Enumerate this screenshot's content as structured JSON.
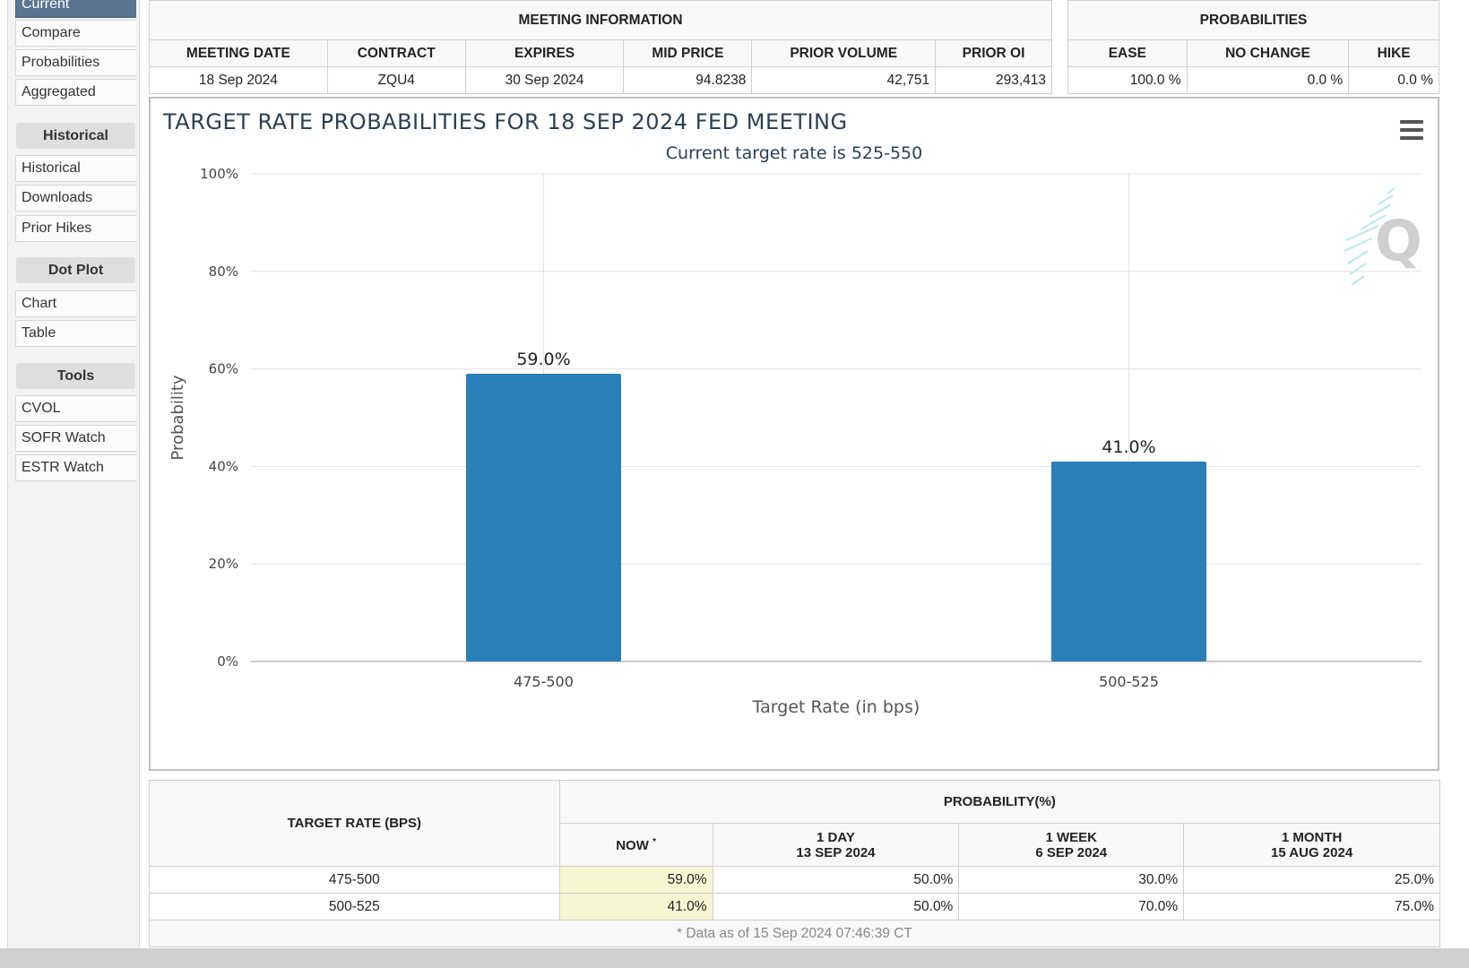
{
  "sidebar": {
    "items_top": [
      "Current",
      "Compare",
      "Probabilities",
      "Aggregated"
    ],
    "sections": [
      {
        "header": "Historical",
        "items": [
          "Historical",
          "Downloads",
          "Prior Hikes"
        ]
      },
      {
        "header": "Dot Plot",
        "items": [
          "Chart",
          "Table"
        ]
      },
      {
        "header": "Tools",
        "items": [
          "CVOL",
          "SOFR Watch",
          "ESTR Watch"
        ]
      }
    ]
  },
  "meeting_info": {
    "caption": "MEETING INFORMATION",
    "headers": [
      "MEETING DATE",
      "CONTRACT",
      "EXPIRES",
      "MID PRICE",
      "PRIOR VOLUME",
      "PRIOR OI"
    ],
    "values": [
      "18 Sep 2024",
      "ZQU4",
      "30 Sep 2024",
      "94.8238",
      "42,751",
      "293,413"
    ]
  },
  "probabilities": {
    "caption": "PROBABILITIES",
    "headers": [
      "EASE",
      "NO CHANGE",
      "HIKE"
    ],
    "values": [
      "100.0 %",
      "0.0 %",
      "0.0 %"
    ]
  },
  "chart_data": {
    "type": "bar",
    "title": "TARGET RATE PROBABILITIES FOR 18 SEP 2024 FED MEETING",
    "subtitle": "Current target rate is 525-550",
    "xlabel": "Target Rate (in bps)",
    "ylabel": "Probability",
    "categories": [
      "475-500",
      "500-525"
    ],
    "values": [
      59.0,
      41.0
    ],
    "data_labels": [
      "59.0%",
      "41.0%"
    ],
    "ylim": [
      0,
      100
    ],
    "yticks": [
      "0%",
      "20%",
      "40%",
      "60%",
      "80%",
      "100%"
    ],
    "grid": true,
    "bar_color": "#2a7fb8"
  },
  "bottom_table": {
    "target_header": "TARGET RATE (BPS)",
    "prob_header": "PROBABILITY(%)",
    "col_now": "NOW",
    "col_now_mark": "*",
    "col_1day": [
      "1 DAY",
      "13 SEP 2024"
    ],
    "col_1week": [
      "1 WEEK",
      "6 SEP 2024"
    ],
    "col_1month": [
      "1 MONTH",
      "15 AUG 2024"
    ],
    "rows": [
      {
        "rate": "475-500",
        "now": "59.0%",
        "day": "50.0%",
        "week": "30.0%",
        "month": "25.0%"
      },
      {
        "rate": "500-525",
        "now": "41.0%",
        "day": "50.0%",
        "week": "70.0%",
        "month": "75.0%"
      }
    ],
    "footnote": "* Data as of 15 Sep 2024 07:46:39 CT"
  },
  "icons": {
    "menu": "hamburger-menu-icon",
    "watermark": "q-logo-icon"
  }
}
